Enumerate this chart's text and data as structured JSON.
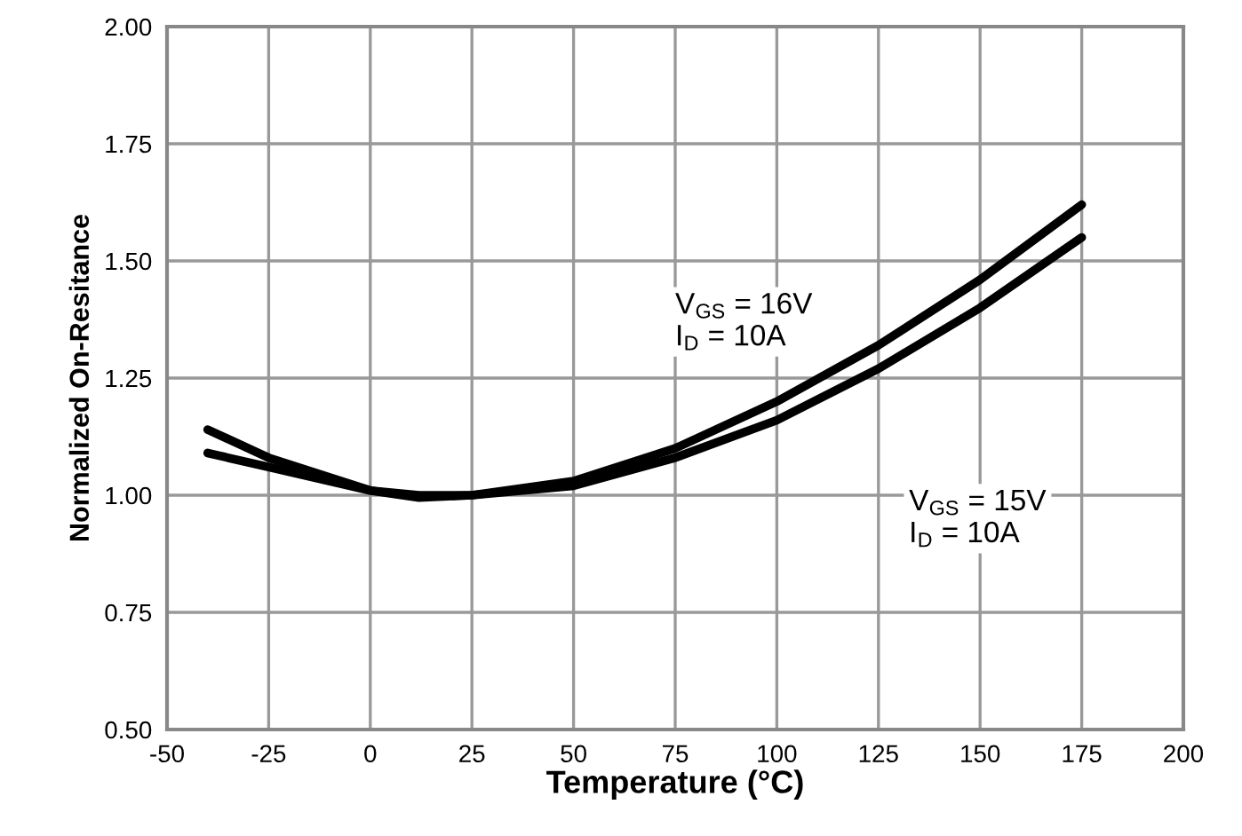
{
  "chart_data": {
    "type": "line",
    "xlabel": "Temperature (°C)",
    "ylabel": "Normalized On-Resitance",
    "series": [
      {
        "name": "V$_{GS}$ = 16V\nI$_{D}$ = 10A",
        "color": "#000000",
        "x": [
          -40,
          -25,
          0,
          12,
          25,
          50,
          75,
          100,
          125,
          150,
          175
        ],
        "values": [
          1.09,
          1.06,
          1.01,
          1.0,
          1.0,
          1.03,
          1.1,
          1.2,
          1.32,
          1.46,
          1.62
        ]
      },
      {
        "name": "V$_{GS}$ = 15V\nI$_{D}$ = 10A",
        "color": "#000000",
        "x": [
          -40,
          -25,
          0,
          12,
          25,
          50,
          75,
          100,
          125,
          150,
          175
        ],
        "values": [
          1.14,
          1.08,
          1.01,
          0.995,
          1.0,
          1.02,
          1.08,
          1.16,
          1.27,
          1.4,
          1.55
        ]
      }
    ],
    "xlim": [
      -50,
      200
    ],
    "xticks": [
      -50,
      -25,
      0,
      25,
      50,
      75,
      100,
      125,
      150,
      175,
      200
    ],
    "ylim": [
      0.5,
      2.0
    ],
    "yticks": [
      {
        "value": 0.5,
        "label": "0.50"
      },
      {
        "value": 0.75,
        "label": "0.75"
      },
      {
        "value": 1.0,
        "label": "1.00"
      },
      {
        "value": 1.25,
        "label": "1.25"
      },
      {
        "value": 1.5,
        "label": "1.50"
      },
      {
        "value": 1.75,
        "label": "1.75"
      },
      {
        "value": 2.0,
        "label": "2.00"
      }
    ],
    "grid": true,
    "marker": "none",
    "line_style": "solid"
  }
}
